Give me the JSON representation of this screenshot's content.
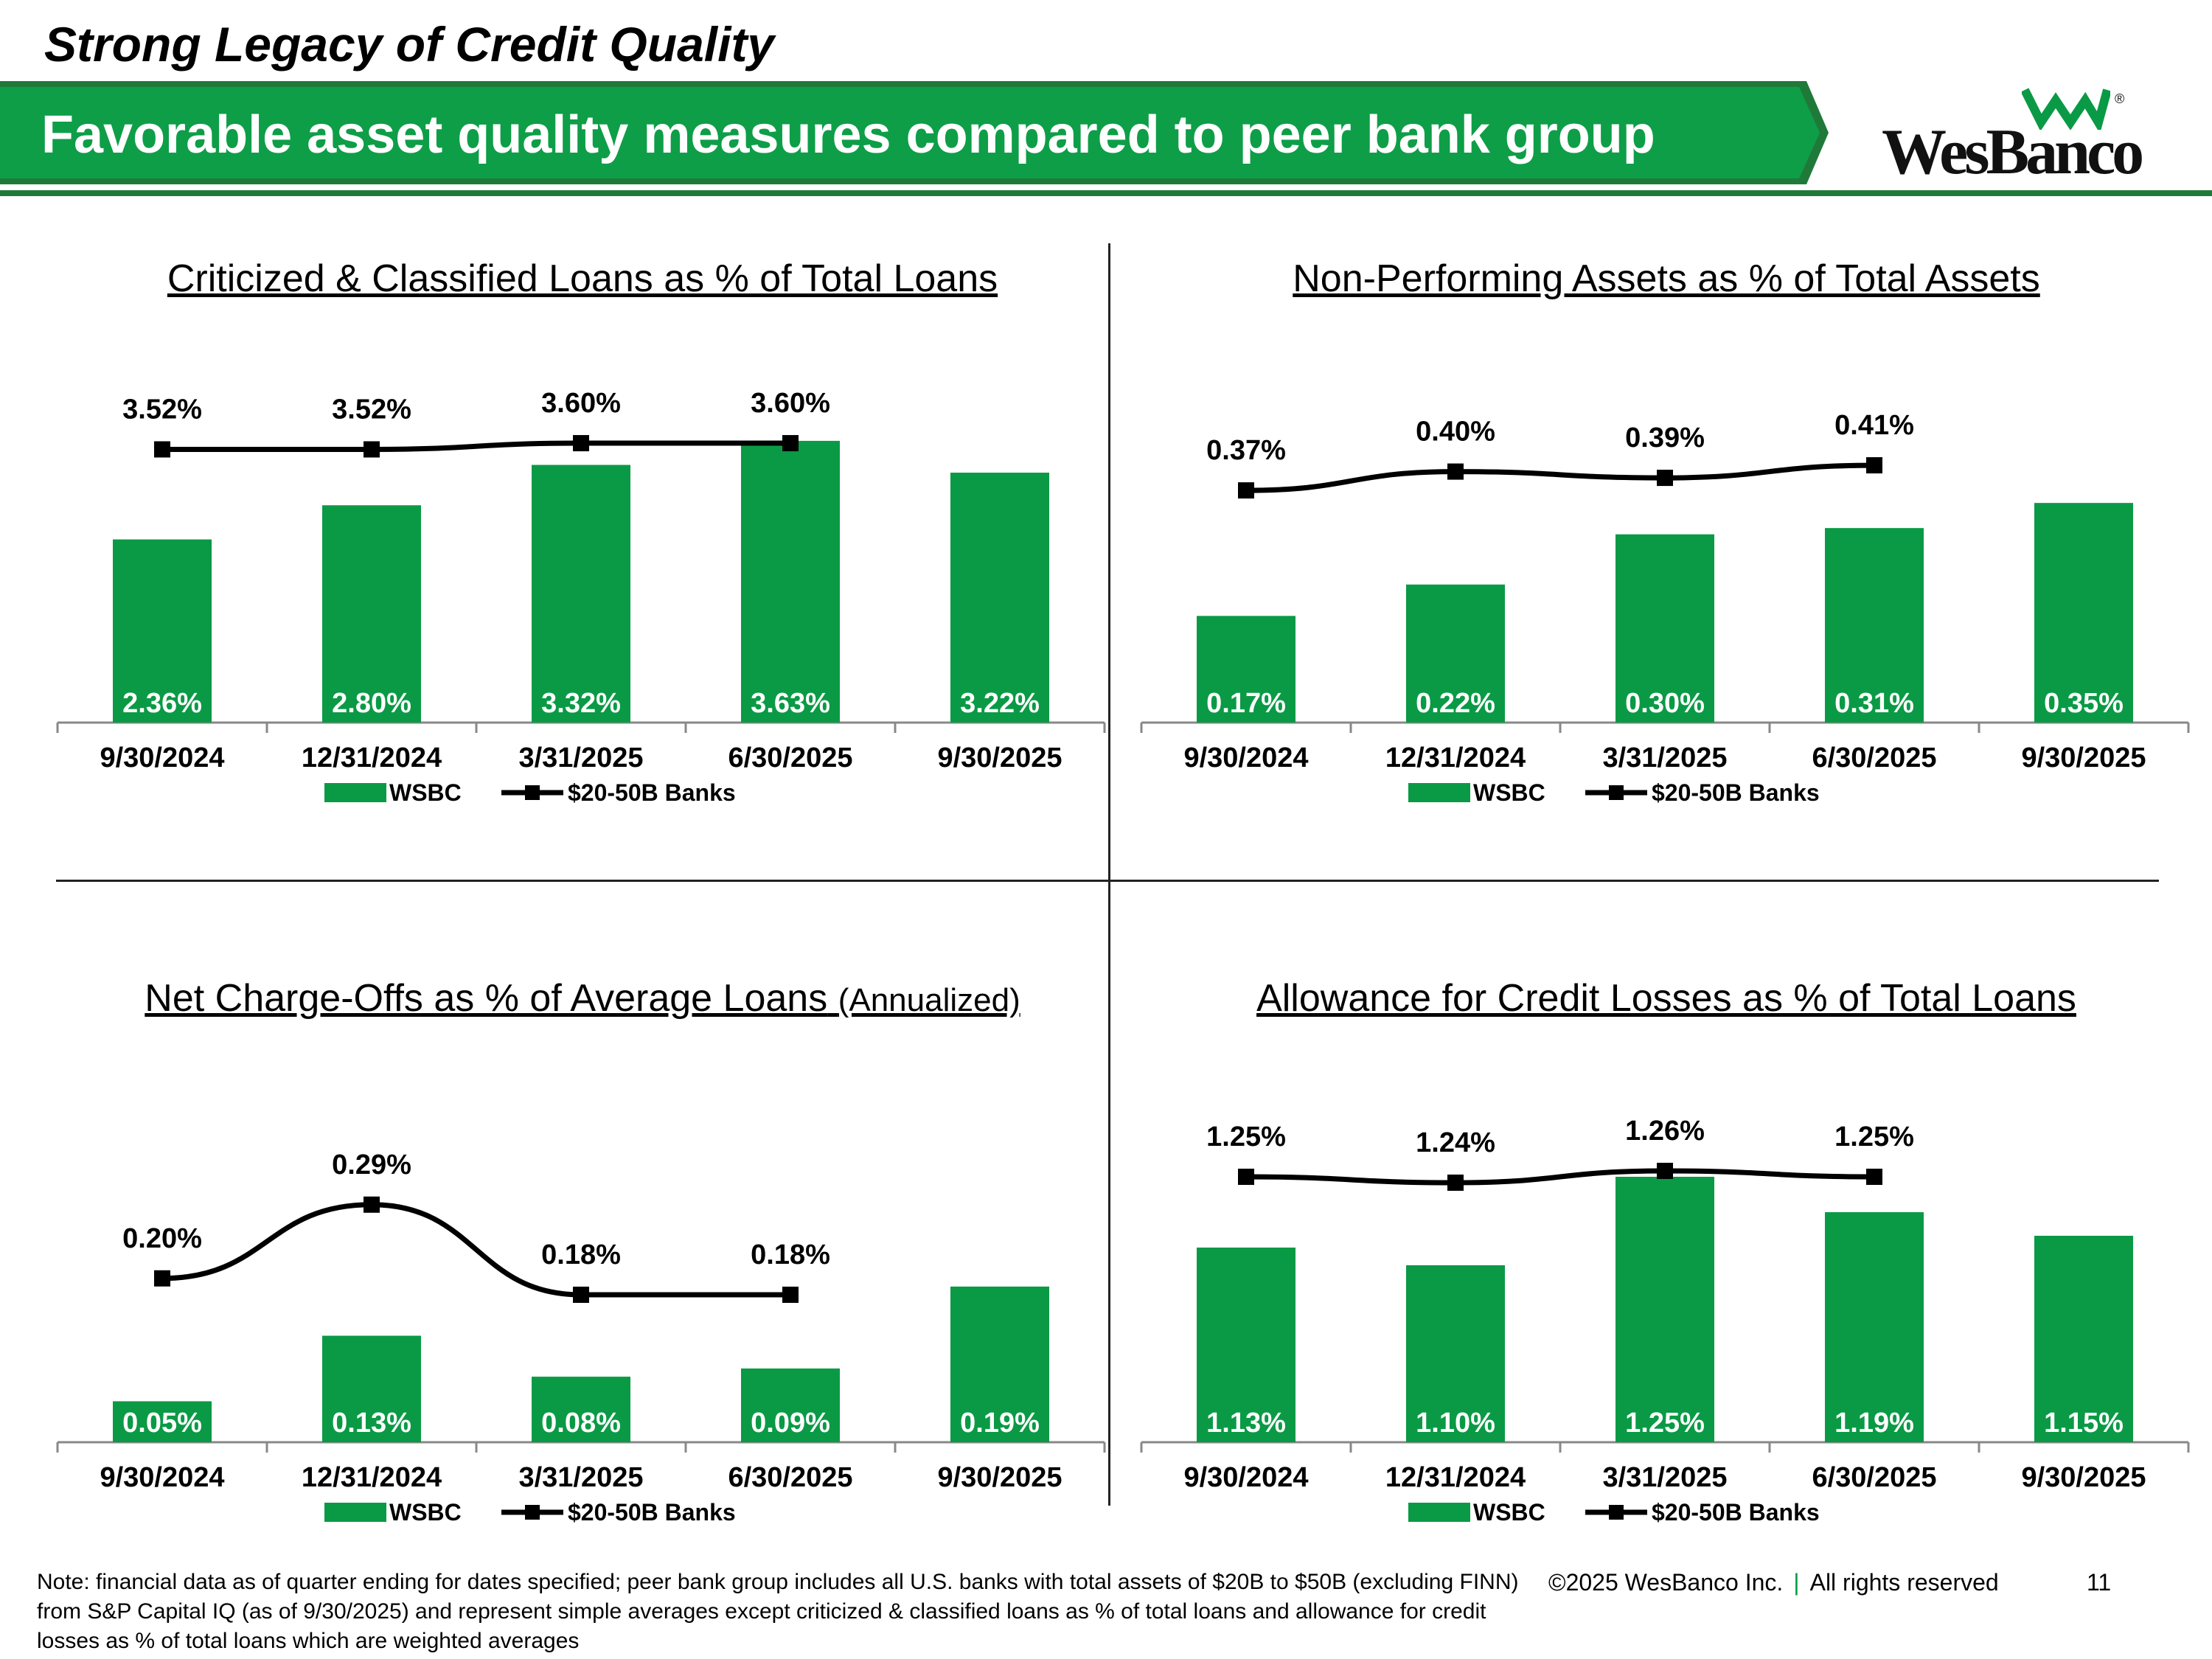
{
  "header": {
    "headline": "Strong Legacy of Credit Quality",
    "banner": "Favorable asset quality measures compared to peer bank group",
    "logo_text": "WesBanco",
    "logo_reg": "®"
  },
  "colors": {
    "brand_green": "#0a9a45",
    "banner_green": "#0e9e48",
    "dark_green": "#1f7a3a",
    "line": "#000000"
  },
  "legend": {
    "bar_label": "WSBC",
    "line_label": "$20-50B Banks"
  },
  "chart_data": [
    {
      "type": "bar",
      "title": "Criticized & Classified Loans as % of Total Loans",
      "subtitle": "",
      "categories": [
        "9/30/2024",
        "12/31/2024",
        "3/31/2025",
        "6/30/2025",
        "9/30/2025"
      ],
      "series": [
        {
          "name": "WSBC",
          "type": "bar",
          "values": [
            2.36,
            2.8,
            3.32,
            3.63,
            3.22
          ],
          "labels": [
            "2.36%",
            "2.80%",
            "3.32%",
            "3.63%",
            "3.22%"
          ]
        },
        {
          "name": "$20-50B Banks",
          "type": "line",
          "values": [
            3.52,
            3.52,
            3.6,
            3.6,
            null
          ],
          "labels": [
            "3.52%",
            "3.52%",
            "3.60%",
            "3.60%",
            null
          ]
        }
      ],
      "ylim": [
        0,
        3.8
      ]
    },
    {
      "type": "bar",
      "title": "Non-Performing Assets as % of Total Assets",
      "subtitle": "",
      "categories": [
        "9/30/2024",
        "12/31/2024",
        "3/31/2025",
        "6/30/2025",
        "9/30/2025"
      ],
      "series": [
        {
          "name": "WSBC",
          "type": "bar",
          "values": [
            0.17,
            0.22,
            0.3,
            0.31,
            0.35
          ],
          "labels": [
            "0.17%",
            "0.22%",
            "0.30%",
            "0.31%",
            "0.35%"
          ]
        },
        {
          "name": "$20-50B Banks",
          "type": "line",
          "values": [
            0.37,
            0.4,
            0.39,
            0.41,
            null
          ],
          "labels": [
            "0.37%",
            "0.40%",
            "0.39%",
            "0.41%",
            null
          ]
        }
      ],
      "ylim": [
        0,
        0.47
      ]
    },
    {
      "type": "bar",
      "title": "Net Charge-Offs as % of Average Loans",
      "subtitle": "(Annualized)",
      "categories": [
        "9/30/2024",
        "12/31/2024",
        "3/31/2025",
        "6/30/2025",
        "9/30/2025"
      ],
      "series": [
        {
          "name": "WSBC",
          "type": "bar",
          "values": [
            0.05,
            0.13,
            0.08,
            0.09,
            0.19
          ],
          "labels": [
            "0.05%",
            "0.13%",
            "0.08%",
            "0.09%",
            "0.19%"
          ]
        },
        {
          "name": "$20-50B Banks",
          "type": "line",
          "values": [
            0.2,
            0.29,
            0.18,
            0.18,
            null
          ],
          "labels": [
            "0.20%",
            "0.29%",
            "0.18%",
            "0.18%",
            null
          ]
        }
      ],
      "ylim": [
        0,
        0.36
      ]
    },
    {
      "type": "bar",
      "title": "Allowance for Credit Losses as % of Total Loans",
      "subtitle": "",
      "categories": [
        "9/30/2024",
        "12/31/2024",
        "3/31/2025",
        "6/30/2025",
        "9/30/2025"
      ],
      "series": [
        {
          "name": "WSBC",
          "type": "bar",
          "values": [
            1.13,
            1.1,
            1.25,
            1.19,
            1.15
          ],
          "labels": [
            "1.13%",
            "1.10%",
            "1.25%",
            "1.19%",
            "1.15%"
          ]
        },
        {
          "name": "$20-50B Banks",
          "type": "line",
          "values": [
            1.25,
            1.24,
            1.26,
            1.25,
            null
          ],
          "labels": [
            "1.25%",
            "1.24%",
            "1.26%",
            "1.25%",
            null
          ]
        }
      ],
      "ylim": [
        0.8,
        1.3
      ]
    }
  ],
  "footer": {
    "note": "Note: financial data as of quarter ending for dates specified; peer bank group includes all U.S. banks with total assets of $20B to $50B (excluding FINN) from S&P Capital IQ (as of 9/30/2025) and represent simple averages except criticized & classified loans as % of total loans and allowance for credit losses as % of total loans which are weighted averages",
    "copyright": "©2025 WesBanco Inc.",
    "separator": "|",
    "rights": "All rights reserved",
    "page": "11"
  }
}
